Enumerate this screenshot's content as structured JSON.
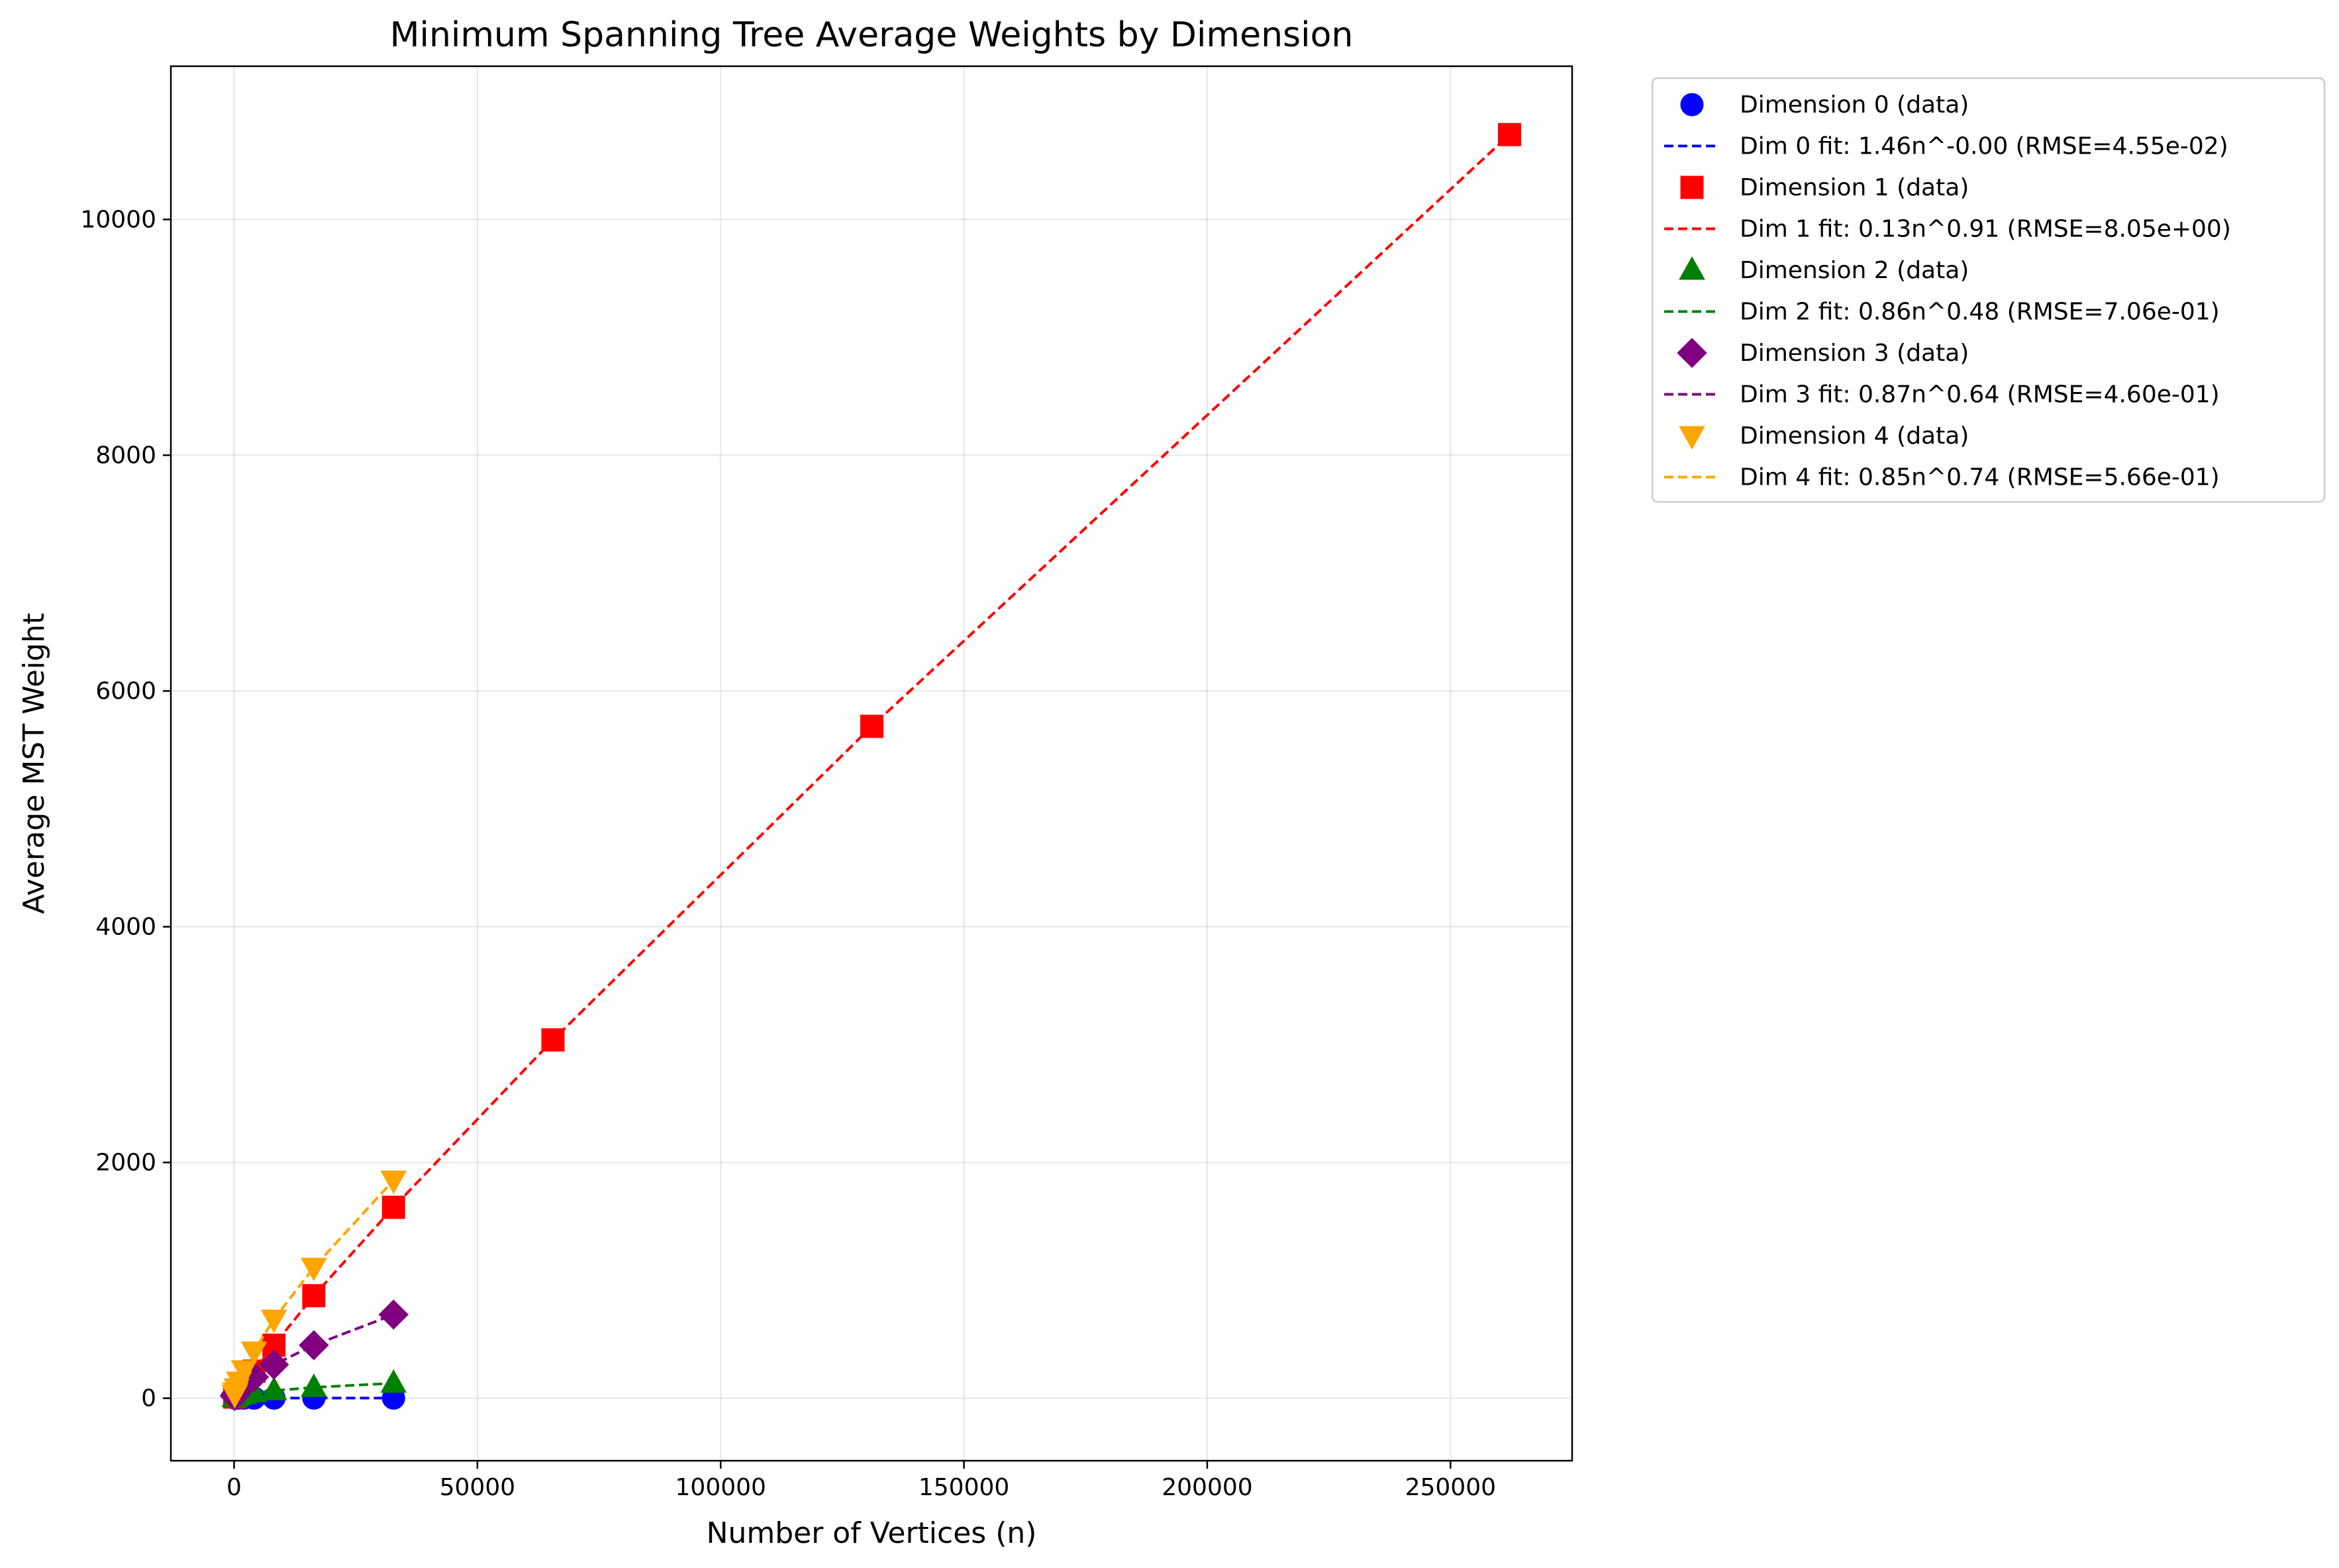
{
  "chart_data": {
    "type": "scatter",
    "title": "Minimum Spanning Tree Average Weights by Dimension",
    "xlabel": "Number of Vertices (n)",
    "ylabel": "Average MST Weight",
    "xlim": [
      -13000,
      275000
    ],
    "ylim": [
      -530,
      11300
    ],
    "x_ticks": [
      0,
      50000,
      100000,
      150000,
      200000,
      250000
    ],
    "x_tick_labels": [
      "0",
      "50000",
      "100000",
      "150000",
      "200000",
      "250000"
    ],
    "y_ticks": [
      0,
      2000,
      4000,
      6000,
      8000,
      10000
    ],
    "y_tick_labels": [
      "0",
      "2000",
      "4000",
      "6000",
      "8000",
      "10000"
    ],
    "grid": true,
    "legend_position": "outside-top-right",
    "series": [
      {
        "name": "Dimension 0 (data)",
        "fit_name": "Dim 0 fit: 1.46n^-0.00 (RMSE=4.55e-02)",
        "color": "#0000ff",
        "marker": "circle",
        "x": [
          128,
          256,
          512,
          1024,
          2048,
          4096,
          8192,
          16384,
          32768
        ],
        "y": [
          1.48,
          1.46,
          1.47,
          1.45,
          1.46,
          1.45,
          1.44,
          1.45,
          1.44
        ],
        "fit_x": [
          128,
          256,
          512,
          1024,
          2048,
          4096,
          8192,
          16384,
          32768
        ],
        "fit_y": [
          1.46,
          1.46,
          1.46,
          1.46,
          1.46,
          1.46,
          1.46,
          1.46,
          1.46
        ]
      },
      {
        "name": "Dimension 1 (data)",
        "fit_name": "Dim 1 fit: 0.13n^0.91 (RMSE=8.05e+00)",
        "color": "#ff0000",
        "marker": "square",
        "x": [
          128,
          256,
          512,
          1024,
          2048,
          4096,
          8192,
          16384,
          32768,
          65536,
          131072,
          262144
        ],
        "y": [
          10,
          20,
          35,
          65,
          120,
          230,
          450,
          870,
          1620,
          3040,
          5700,
          10720
        ],
        "fit_x": [
          128,
          256,
          512,
          1024,
          2048,
          4096,
          8192,
          16384,
          32768,
          65536,
          131072,
          262144
        ],
        "fit_y": [
          10,
          20,
          35,
          65,
          120,
          230,
          450,
          870,
          1620,
          3040,
          5700,
          10720
        ]
      },
      {
        "name": "Dimension 2 (data)",
        "fit_name": "Dim 2 fit: 0.86n^0.48 (RMSE=7.06e-01)",
        "color": "#008000",
        "marker": "triangle-up",
        "x": [
          128,
          256,
          512,
          1024,
          2048,
          4096,
          8192,
          16384,
          32768
        ],
        "y": [
          8,
          12,
          17,
          24,
          33,
          47,
          65,
          92,
          128
        ],
        "fit_x": [
          128,
          256,
          512,
          1024,
          2048,
          4096,
          8192,
          16384,
          32768
        ],
        "fit_y": [
          8,
          12,
          17,
          24,
          33,
          47,
          65,
          92,
          128
        ]
      },
      {
        "name": "Dimension 3 (data)",
        "fit_name": "Dim 3 fit: 0.87n^0.64 (RMSE=4.60e-01)",
        "color": "#800080",
        "marker": "diamond",
        "x": [
          128,
          256,
          512,
          1024,
          2048,
          4096,
          8192,
          16384,
          32768
        ],
        "y": [
          19,
          30,
          47,
          74,
          115,
          180,
          285,
          450,
          710
        ],
        "fit_x": [
          128,
          256,
          512,
          1024,
          2048,
          4096,
          8192,
          16384,
          32768
        ],
        "fit_y": [
          19,
          30,
          47,
          74,
          115,
          180,
          285,
          450,
          710
        ]
      },
      {
        "name": "Dimension 4 (data)",
        "fit_name": "Dim 4 fit: 0.85n^0.74 (RMSE=5.66e-01)",
        "color": "#ffa500",
        "marker": "triangle-down",
        "x": [
          128,
          256,
          512,
          1024,
          2048,
          4096,
          8192,
          16384,
          32768
        ],
        "y": [
          31,
          52,
          87,
          145,
          240,
          400,
          670,
          1110,
          1850
        ],
        "fit_x": [
          128,
          256,
          512,
          1024,
          2048,
          4096,
          8192,
          16384,
          32768
        ],
        "fit_y": [
          31,
          52,
          87,
          145,
          240,
          400,
          670,
          1110,
          1850
        ]
      }
    ]
  }
}
